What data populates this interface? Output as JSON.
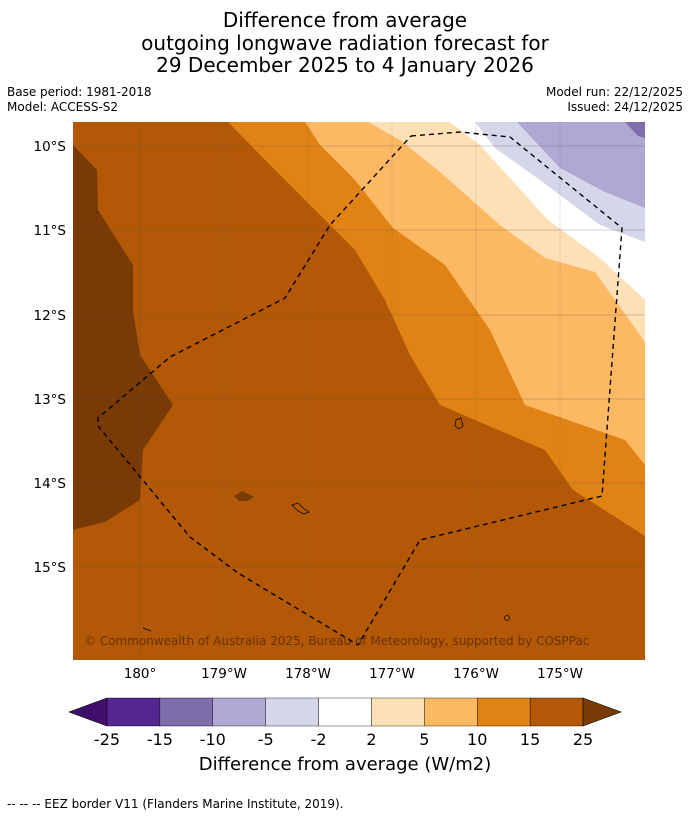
{
  "title": {
    "line1": "Difference from average",
    "line2": "outgoing longwave radiation forecast for",
    "line3": "29 December 2025 to 4 January 2026"
  },
  "meta": {
    "base_period": "Base period: 1981-2018",
    "model": "Model: ACCESS-S2",
    "model_run": "Model run: 22/12/2025",
    "issued": "Issued: 24/12/2025"
  },
  "map": {
    "lat_labels": [
      "10°S",
      "11°S",
      "12°S",
      "13°S",
      "14°S",
      "15°S"
    ],
    "lon_labels": [
      "180°",
      "179°W",
      "178°W",
      "177°W",
      "176°W",
      "175°W"
    ],
    "copyright": "© Commonwealth of Australia 2025, Bureau of Meteorology, supported by COSPPac"
  },
  "colorbar": {
    "labels": [
      "-25",
      "-15",
      "-10",
      "-5",
      "-2",
      "2",
      "5",
      "10",
      "15",
      "25"
    ],
    "colors": [
      "#3f0f6b",
      "#54278f",
      "#7e6eaa",
      "#b0a8d2",
      "#d6d6ea",
      "#ffffff",
      "#fee0b6",
      "#fdb863",
      "#e08214",
      "#b35806",
      "#7a3a05"
    ],
    "title": "Difference from average (W/m2)"
  },
  "footnote": "--  --  -- EEZ border V11 (Flanders Marine Institute, 2019)."
}
